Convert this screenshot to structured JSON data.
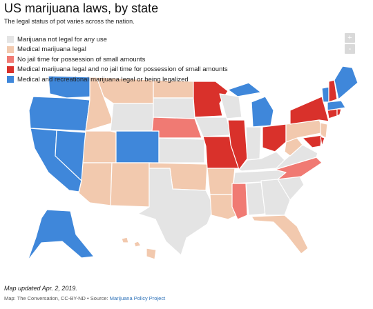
{
  "title": "US marijuana laws, by state",
  "subtitle": "The legal status of pot varies across the nation.",
  "colors": {
    "not_legal": "#e4e4e4",
    "medical": "#f2c9ae",
    "no_jail": "#f07a73",
    "medical_no_jail": "#d9312b",
    "recreational": "#3f87da"
  },
  "legend": [
    {
      "label": "Marijuana not legal for any use",
      "color": "#e4e4e4"
    },
    {
      "label": "Medical marijuana legal",
      "color": "#f2c9ae"
    },
    {
      "label": "No jail time for possession of small amounts",
      "color": "#f07a73"
    },
    {
      "label": "Medical marijuana legal and no jail time for possession of small amounts",
      "color": "#d9312b"
    },
    {
      "label": "Medical and recreational marijuana legal or being legalized",
      "color": "#3f87da"
    }
  ],
  "zoom": {
    "in_label": "+",
    "out_label": "-"
  },
  "footer": {
    "note": "Map updated Apr. 2, 2019.",
    "credit_prefix": "Map: The Conversation, CC-BY-ND • Source: ",
    "credit_link": "Marijuana Policy Project"
  }
}
